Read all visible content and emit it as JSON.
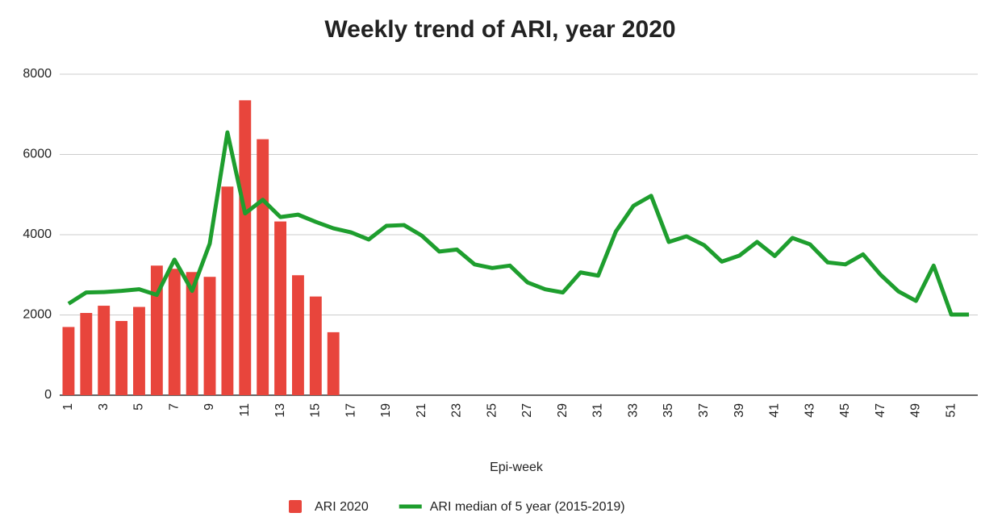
{
  "chart_data": {
    "type": "bar_line",
    "title": "Weekly trend of ARI, year 2020",
    "x_label": "Epi-week",
    "categories": [
      1,
      null,
      3,
      null,
      5,
      null,
      7,
      null,
      9,
      null,
      11,
      null,
      13,
      null,
      15,
      null,
      17,
      null,
      19,
      null,
      21,
      null,
      23,
      null,
      25,
      null,
      27,
      null,
      29,
      null,
      31,
      null,
      33,
      null,
      35,
      null,
      37,
      null,
      39,
      null,
      41,
      null,
      43,
      null,
      45,
      null,
      47,
      null,
      49,
      null,
      51,
      null
    ],
    "series": [
      {
        "name": "ARI 2020",
        "type": "bar",
        "color": "#e8453c",
        "values": [
          1700,
          2050,
          2230,
          1850,
          2200,
          3230,
          3150,
          3070,
          2950,
          5200,
          7350,
          6380,
          4330,
          2990,
          2460,
          1570,
          null,
          null,
          null,
          null,
          null,
          null,
          null,
          null,
          null,
          null,
          null,
          null,
          null,
          null,
          null,
          null,
          null,
          null,
          null,
          null,
          null,
          null,
          null,
          null,
          null,
          null,
          null,
          null,
          null,
          null,
          null,
          null,
          null,
          null,
          null,
          null
        ]
      },
      {
        "name": "ARI median of 5 year (2015-2019)",
        "type": "line",
        "color": "#1e9e2e",
        "values": [
          2280,
          2560,
          2570,
          2600,
          2640,
          2500,
          3380,
          2600,
          3780,
          6550,
          4530,
          4870,
          4440,
          4500,
          4320,
          4160,
          4060,
          3880,
          4220,
          4240,
          3980,
          3580,
          3630,
          3260,
          3170,
          3230,
          2810,
          2640,
          2560,
          3060,
          2980,
          4080,
          4720,
          4970,
          3820,
          3960,
          3740,
          3330,
          3480,
          3820,
          3470,
          3920,
          3760,
          3310,
          3260,
          3510,
          3000,
          2590,
          2350,
          3230,
          2010,
          2010
        ]
      }
    ],
    "ylim": [
      0,
      8000
    ],
    "yticks": [
      0,
      2000,
      4000,
      6000,
      8000
    ],
    "grid": true,
    "legend": "bottom"
  }
}
